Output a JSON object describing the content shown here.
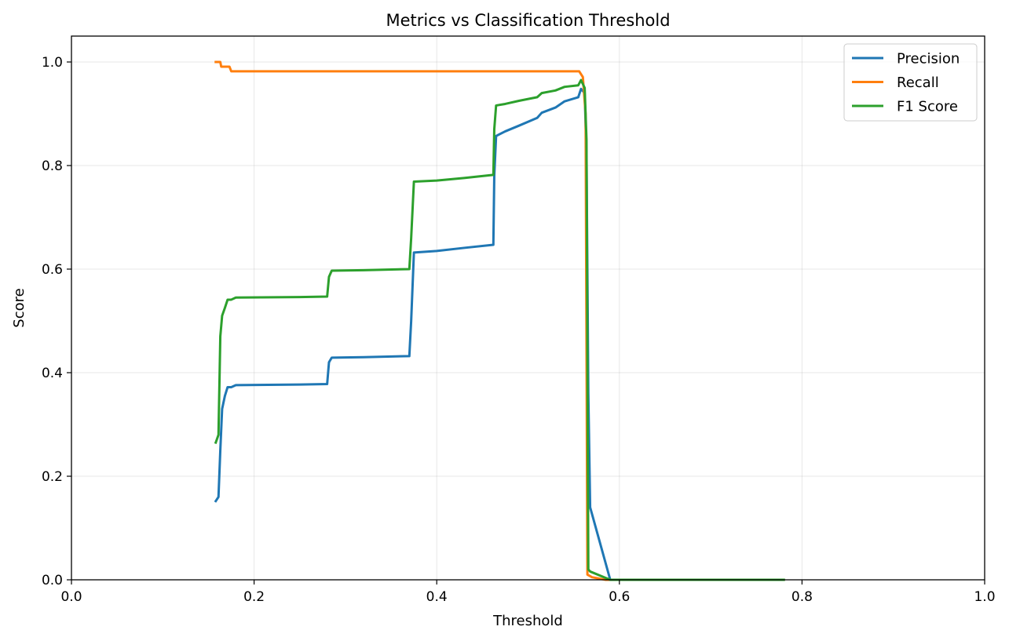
{
  "chart_data": {
    "type": "line",
    "title": "Metrics vs Classification Threshold",
    "xlabel": "Threshold",
    "ylabel": "Score",
    "xlim": [
      0.0,
      1.0
    ],
    "ylim": [
      0.0,
      1.05
    ],
    "x_ticks": [
      0.0,
      0.2,
      0.4,
      0.6,
      0.8,
      1.0
    ],
    "x_tick_labels": [
      "0.0",
      "0.2",
      "0.4",
      "0.6",
      "0.8",
      "1.0"
    ],
    "y_ticks": [
      0.0,
      0.2,
      0.4,
      0.6,
      0.8,
      1.0
    ],
    "y_tick_labels": [
      "0.0",
      "0.2",
      "0.4",
      "0.6",
      "0.8",
      "1.0"
    ],
    "grid": true,
    "legend_position": "top-right",
    "series": [
      {
        "name": "Precision",
        "color": "#1f77b4",
        "points": [
          [
            0.158,
            0.152
          ],
          [
            0.161,
            0.16
          ],
          [
            0.163,
            0.25
          ],
          [
            0.165,
            0.33
          ],
          [
            0.168,
            0.355
          ],
          [
            0.171,
            0.372
          ],
          [
            0.175,
            0.372
          ],
          [
            0.18,
            0.376
          ],
          [
            0.25,
            0.377
          ],
          [
            0.28,
            0.378
          ],
          [
            0.282,
            0.42
          ],
          [
            0.285,
            0.429
          ],
          [
            0.32,
            0.43
          ],
          [
            0.37,
            0.432
          ],
          [
            0.372,
            0.5
          ],
          [
            0.375,
            0.632
          ],
          [
            0.4,
            0.635
          ],
          [
            0.43,
            0.641
          ],
          [
            0.462,
            0.647
          ],
          [
            0.463,
            0.78
          ],
          [
            0.465,
            0.857
          ],
          [
            0.475,
            0.866
          ],
          [
            0.49,
            0.877
          ],
          [
            0.51,
            0.892
          ],
          [
            0.515,
            0.902
          ],
          [
            0.53,
            0.912
          ],
          [
            0.54,
            0.924
          ],
          [
            0.555,
            0.932
          ],
          [
            0.558,
            0.948
          ],
          [
            0.562,
            0.94
          ],
          [
            0.564,
            0.82
          ],
          [
            0.566,
            0.36
          ],
          [
            0.568,
            0.14
          ],
          [
            0.59,
            0.0
          ],
          [
            0.78,
            0.0
          ]
        ]
      },
      {
        "name": "Recall",
        "color": "#ff7f0e",
        "points": [
          [
            0.158,
            1.0
          ],
          [
            0.163,
            1.0
          ],
          [
            0.164,
            0.991
          ],
          [
            0.173,
            0.991
          ],
          [
            0.175,
            0.982
          ],
          [
            0.556,
            0.982
          ],
          [
            0.56,
            0.971
          ],
          [
            0.563,
            0.9
          ],
          [
            0.565,
            0.01
          ],
          [
            0.567,
            0.008
          ],
          [
            0.57,
            0.005
          ],
          [
            0.585,
            0.0
          ],
          [
            0.78,
            0.0
          ]
        ]
      },
      {
        "name": "F1 Score",
        "color": "#2ca02c",
        "points": [
          [
            0.158,
            0.265
          ],
          [
            0.161,
            0.28
          ],
          [
            0.163,
            0.47
          ],
          [
            0.165,
            0.51
          ],
          [
            0.168,
            0.525
          ],
          [
            0.171,
            0.541
          ],
          [
            0.175,
            0.541
          ],
          [
            0.18,
            0.545
          ],
          [
            0.25,
            0.546
          ],
          [
            0.28,
            0.547
          ],
          [
            0.282,
            0.585
          ],
          [
            0.285,
            0.597
          ],
          [
            0.32,
            0.598
          ],
          [
            0.37,
            0.6
          ],
          [
            0.372,
            0.66
          ],
          [
            0.375,
            0.769
          ],
          [
            0.4,
            0.771
          ],
          [
            0.43,
            0.776
          ],
          [
            0.462,
            0.782
          ],
          [
            0.463,
            0.87
          ],
          [
            0.465,
            0.916
          ],
          [
            0.475,
            0.919
          ],
          [
            0.49,
            0.925
          ],
          [
            0.51,
            0.932
          ],
          [
            0.515,
            0.94
          ],
          [
            0.53,
            0.945
          ],
          [
            0.54,
            0.952
          ],
          [
            0.555,
            0.955
          ],
          [
            0.558,
            0.965
          ],
          [
            0.562,
            0.95
          ],
          [
            0.564,
            0.85
          ],
          [
            0.566,
            0.02
          ],
          [
            0.568,
            0.016
          ],
          [
            0.59,
            0.0
          ],
          [
            0.78,
            0.0
          ]
        ]
      }
    ]
  }
}
